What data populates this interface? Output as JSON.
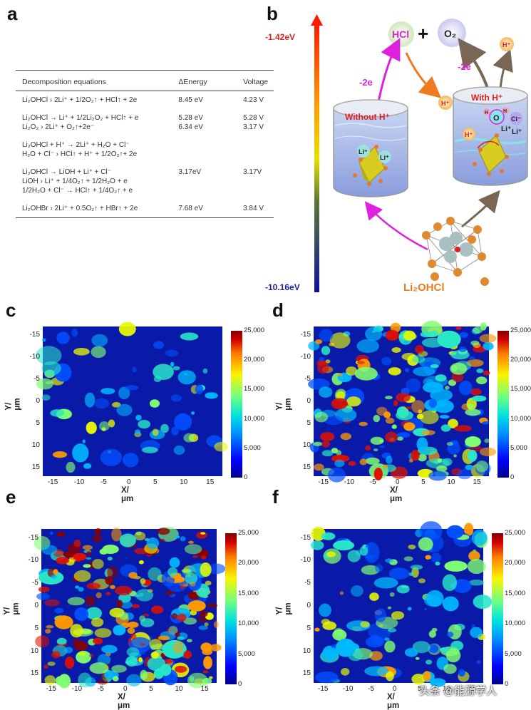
{
  "panels": {
    "a": "a",
    "b": "b",
    "c": "c",
    "d": "d",
    "e": "e",
    "f": "f"
  },
  "table": {
    "headers": [
      "Decomposition equations",
      "ΔEnergy",
      "Voltage"
    ],
    "rows": [
      {
        "eq": [
          "Li₂OHCl  › 2Li⁺ + 1/2O₂↑ + HCl↑ + 2e"
        ],
        "energy": [
          "8.45 eV"
        ],
        "voltage": [
          "4.23 V"
        ]
      },
      {
        "eq": [
          "Li₂OHCl → Li⁺ + 1/2Li₂O₂ + HCl↑ + e",
          "Li₂O₂     › 2Li⁺ + O₂↑+2e⁻"
        ],
        "energy": [
          "5.28 eV",
          "6.34 eV"
        ],
        "voltage": [
          "5.28 V",
          "3.17 V"
        ]
      },
      {
        "eq": [
          "Li₂OHCl + H⁺ → 2Li⁺ + H₂O + Cl⁻",
          "H₂O + Cl⁻  › HCl↑ + H⁺ + 1/2O₂↑+ 2e"
        ],
        "energy": [
          ""
        ],
        "voltage": [
          ""
        ]
      },
      {
        "eq": [
          "Li₂OHCl → LiOH + Li⁺ + Cl⁻",
          "LiOH  › Li⁺ + 1/4O₂↑ + 1/2H₂O + e",
          "1/2H₂O + Cl⁻ → HCl↑ + 1/4O₂↑ + e"
        ],
        "energy": [
          "",
          "3.17eV"
        ],
        "voltage": [
          "",
          "3.17V"
        ]
      },
      {
        "eq": [
          "Li₂OHBr  › 2Li⁺ + 0.5O₂↑ + HBr↑ + 2e"
        ],
        "energy": [
          "7.68 eV"
        ],
        "voltage": [
          "3.84 V"
        ]
      }
    ]
  },
  "schematic": {
    "energy_top": "-1.42eV",
    "energy_bottom": "-10.16eV",
    "hcl": "HCl",
    "plus": "+",
    "o2": "O₂",
    "minus_2e_left": "-2e",
    "minus_2e_right": "-2e",
    "without_h": "Without H⁺",
    "with_h": "With H⁺",
    "li_plus": "Li⁺",
    "h_plus": "H⁺",
    "cl_minus": "Cl⁻",
    "o_label": "O",
    "h_label": "H",
    "compound": "Li₂OHCl",
    "colors": {
      "pink": "#e020e0",
      "orange": "#f07a20",
      "red": "#e02020",
      "brown": "#7a6654"
    }
  },
  "chart_data": [
    {
      "panel": "c",
      "type": "heatmap",
      "xlabel": "X/μm",
      "ylabel": "Y/μm",
      "xticks": [
        -15,
        -10,
        -5,
        0,
        5,
        10,
        15
      ],
      "yticks": [
        -15,
        -10,
        -5,
        0,
        5,
        10,
        15
      ],
      "colorbar_ticks": [
        0,
        5000,
        10000,
        15000,
        20000,
        25000
      ],
      "colorbar_labels": [
        "0",
        "5,000",
        "10,000",
        "15,000",
        "20,000",
        "25,000"
      ],
      "xlim": [
        -17,
        17
      ],
      "ylim": [
        -17,
        17
      ],
      "intensity": "low"
    },
    {
      "panel": "d",
      "type": "heatmap",
      "xlabel": "X/μm",
      "ylabel": "Y/μm",
      "xticks": [
        -15,
        -10,
        -5,
        0,
        5,
        10,
        15
      ],
      "yticks": [
        -15,
        -10,
        -5,
        0,
        5,
        10,
        15
      ],
      "colorbar_ticks": [
        0,
        5000,
        10000,
        15000,
        20000,
        25000
      ],
      "colorbar_labels": [
        "0",
        "5,000",
        "10,000",
        "15,000",
        "20,000",
        "25,000"
      ],
      "xlim": [
        -17,
        17
      ],
      "ylim": [
        -17,
        17
      ],
      "intensity": "high"
    },
    {
      "panel": "e",
      "type": "heatmap",
      "xlabel": "X/μm",
      "ylabel": "Y/μm",
      "xticks": [
        -15,
        -10,
        -5,
        0,
        5,
        10,
        15
      ],
      "yticks": [
        -15,
        -10,
        -5,
        0,
        5,
        10,
        15
      ],
      "colorbar_ticks": [
        0,
        5000,
        10000,
        15000,
        20000,
        25000
      ],
      "colorbar_labels": [
        "0",
        "5,000",
        "10,000",
        "15,000",
        "20,000",
        "25,000"
      ],
      "xlim": [
        -17,
        17
      ],
      "ylim": [
        -17,
        17
      ],
      "intensity": "very high"
    },
    {
      "panel": "f",
      "type": "heatmap",
      "xlabel": "X/μm",
      "ylabel": "Y/μm",
      "xticks": [
        -15,
        -10,
        -5,
        0,
        5,
        10,
        15
      ],
      "yticks": [
        -15,
        -10,
        -5,
        0,
        5,
        10,
        15
      ],
      "colorbar_ticks": [
        0,
        5000,
        10000,
        15000,
        20000,
        25000
      ],
      "colorbar_labels": [
        "0",
        "5,000",
        "10,000",
        "15,000",
        "20,000",
        "25,000"
      ],
      "xlim": [
        -17,
        17
      ],
      "ylim": [
        -17,
        17
      ],
      "intensity": "medium"
    }
  ],
  "watermark": "头条 @能源学人"
}
